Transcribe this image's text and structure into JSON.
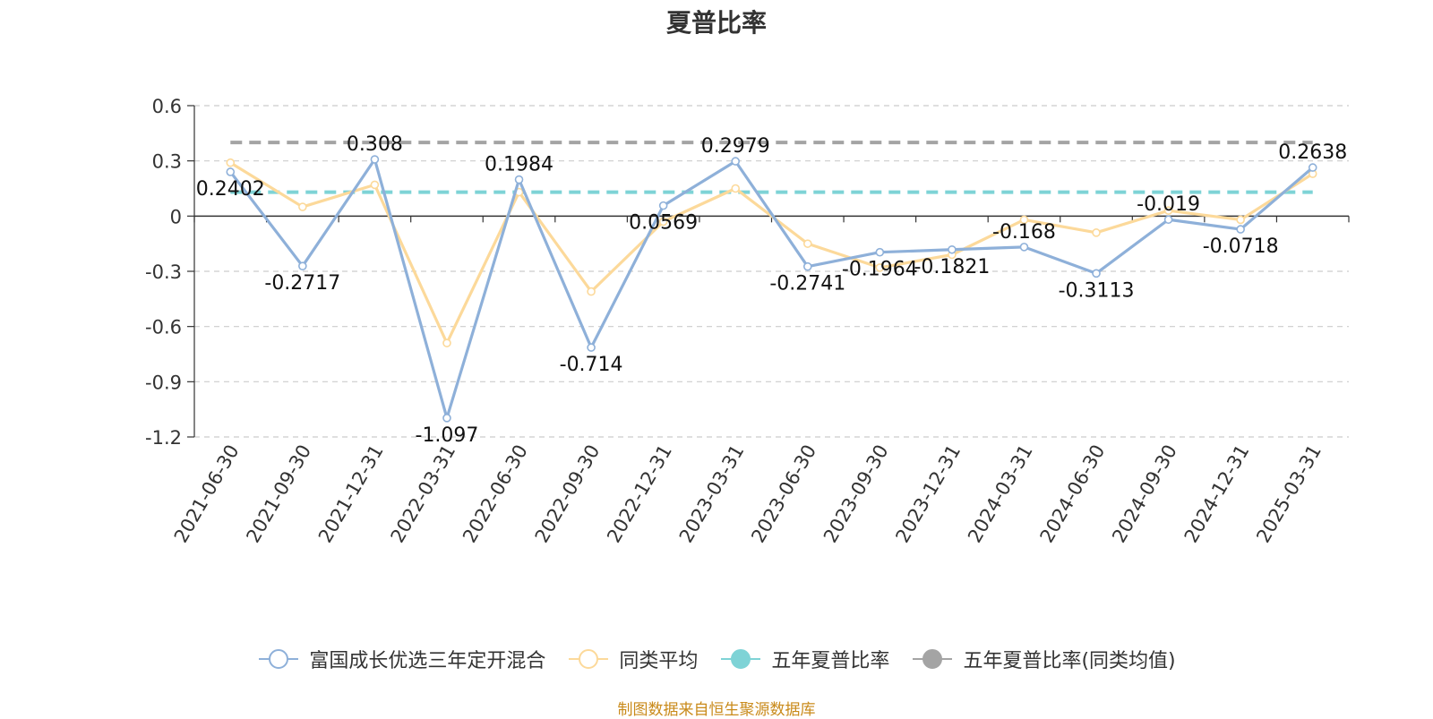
{
  "chart_data": {
    "type": "line",
    "title": "夏普比率",
    "categories": [
      "2021-06-30",
      "2021-09-30",
      "2021-12-31",
      "2022-03-31",
      "2022-06-30",
      "2022-09-30",
      "2022-12-31",
      "2023-03-31",
      "2023-06-30",
      "2023-09-30",
      "2023-12-31",
      "2024-03-31",
      "2024-06-30",
      "2024-09-30",
      "2024-12-31",
      "2025-03-31"
    ],
    "ylim": [
      -1.2,
      0.6
    ],
    "yticks": [
      0.6,
      0.3,
      0,
      -0.3,
      -0.6,
      -0.9,
      -1.2
    ],
    "ytick_labels": [
      "0.6",
      "0.3",
      "0",
      "-0.3",
      "-0.6",
      "-0.9",
      "-1.2"
    ],
    "series": [
      {
        "name": "富国成长优选三年定开混合",
        "color": "#8eb0d9",
        "values": [
          0.2402,
          -0.2717,
          0.308,
          -1.097,
          0.1984,
          -0.714,
          0.0569,
          0.2979,
          -0.2741,
          -0.1964,
          -0.1821,
          -0.168,
          -0.3113,
          -0.019,
          -0.0718,
          0.2638
        ],
        "labels": [
          "0.2402",
          "-0.2717",
          "0.308",
          "-1.097",
          "0.1984",
          "-0.714",
          "0.0569",
          "0.2979",
          "-0.2741",
          "-0.1964",
          "-0.1821",
          "-0.168",
          "-0.3113",
          "-0.019",
          "-0.0718",
          "0.2638"
        ]
      },
      {
        "name": "同类平均",
        "color": "#fcd99a",
        "values": [
          0.29,
          0.05,
          0.17,
          -0.69,
          0.13,
          -0.41,
          -0.03,
          0.15,
          -0.15,
          -0.28,
          -0.21,
          -0.02,
          -0.09,
          0.03,
          -0.02,
          0.23
        ]
      },
      {
        "name": "五年夏普比率",
        "color": "#7ed3d6",
        "constant": 0.13
      },
      {
        "name": "五年夏普比率(同类均值)",
        "color": "#a4a4a4",
        "constant": 0.4
      }
    ],
    "grid": true,
    "legend_position": "bottom"
  },
  "source_note": "制图数据来自恒生聚源数据库"
}
